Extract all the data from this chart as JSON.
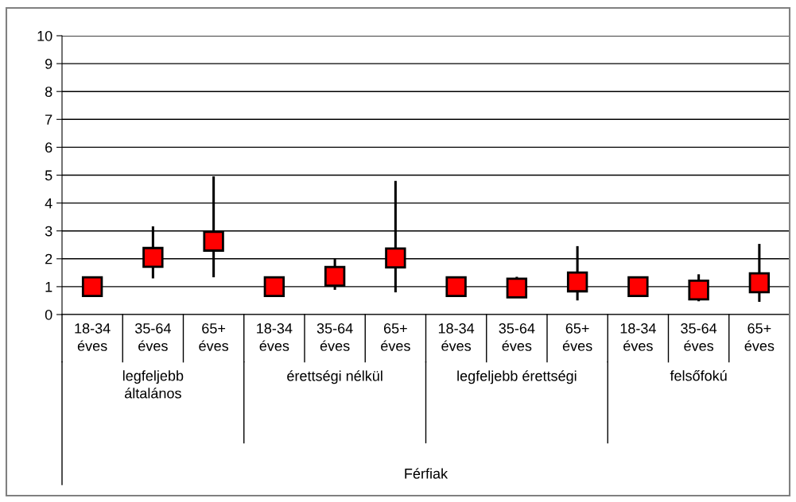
{
  "chart_data": {
    "type": "scatter",
    "categories": [
      "18-34\néves",
      "35-64\néves",
      "65+\néves",
      "18-34\néves",
      "35-64\néves",
      "65+\néves",
      "18-34\néves",
      "35-64\néves",
      "65+\néves",
      "18-34\néves",
      "35-64\néves",
      "65+\néves"
    ],
    "values": [
      1.0,
      2.05,
      2.63,
      1.0,
      1.37,
      2.03,
      1.0,
      0.95,
      1.17,
      1.0,
      0.88,
      1.14
    ],
    "errors": [
      null,
      [
        1.34,
        3.12
      ],
      [
        1.38,
        4.91
      ],
      null,
      [
        0.93,
        1.95
      ],
      [
        0.84,
        4.75
      ],
      null,
      [
        0.95,
        1.31
      ],
      [
        0.55,
        2.41
      ],
      null,
      [
        0.52,
        1.4
      ],
      [
        0.5,
        2.49
      ]
    ],
    "color": "#ff0000",
    "marker": "square",
    "annotations": [
      "legfeljebb\náltalános",
      "érettségi nélkül",
      "legfeljebb érettségi",
      "felsőfokú",
      "Férfiak"
    ],
    "ylim": [
      0,
      10
    ],
    "yticks": [
      0,
      1,
      2,
      3,
      4,
      5,
      6,
      7,
      8,
      9,
      10
    ],
    "grid": "y"
  }
}
